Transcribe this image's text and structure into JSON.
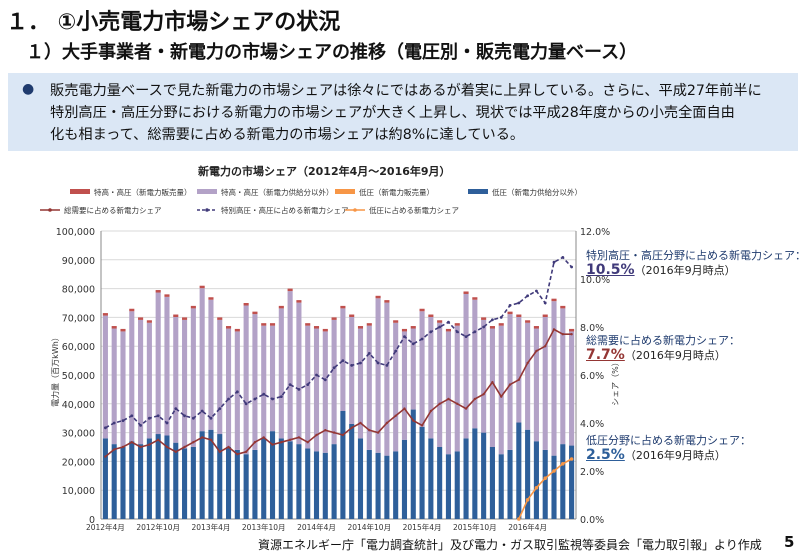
{
  "heading": "１． ①小売電力市場シェアの状況",
  "subheading": "１）大手事業者・新電力の市場シェアの推移（電圧別・販売電力量ベース）",
  "summary": {
    "bullet": "●",
    "lines": [
      "販売電力量ベースで見た新電力の市場シェアは徐々にではあるが着実に上昇している。さらに、平成27年前半に",
      "特別高圧・高圧分野における新電力の市場シェアが大きく上昇し、現状では平成28年度からの小売全面自由",
      "化も相まって、総需要に占める新電力の市場シェアは約8%に達している。"
    ]
  },
  "chart_data": {
    "type": "bar",
    "title": "新電力の市場シェア（2012年4月～2016年9月）",
    "ylabel_left": "電力量（百万kWh）",
    "ylabel_right": "シェア（%）",
    "ylim_left": [
      0,
      100000
    ],
    "ylim_right": [
      0,
      12
    ],
    "yticks_left": [
      "0",
      "10,000",
      "20,000",
      "30,000",
      "40,000",
      "50,000",
      "60,000",
      "70,000",
      "80,000",
      "90,000",
      "100,000"
    ],
    "yticks_right": [
      "0.0%",
      "2.0%",
      "4.0%",
      "6.0%",
      "8.0%",
      "10.0%",
      "12.0%"
    ],
    "xtick_labels": [
      "2012年4月",
      "2012年10月",
      "2013年4月",
      "2013年10月",
      "2014年4月",
      "2014年10月",
      "2015年4月",
      "2015年10月",
      "2016年4月"
    ],
    "grid": true,
    "legend_position": "top",
    "legend": [
      {
        "name": "特高・高圧（新電力販売量）",
        "kind": "bar",
        "color": "#c0504d"
      },
      {
        "name": "特高・高圧（新電力供給分以外）",
        "kind": "bar",
        "color": "#b3a2c7"
      },
      {
        "name": "低圧（新電力販売量）",
        "kind": "bar",
        "color": "#f79646"
      },
      {
        "name": "低圧（新電力供給分以外）",
        "kind": "bar",
        "color": "#2e5f9a"
      },
      {
        "name": "総需要に占める新電力シェア",
        "kind": "line",
        "color": "#943634"
      },
      {
        "name": "特別高圧・高圧に占める新電力シェア",
        "kind": "dashline",
        "color": "#403a7a"
      },
      {
        "name": "低圧に占める新電力シェア",
        "kind": "line",
        "color": "#f79646"
      }
    ],
    "months": 54,
    "bar_total": [
      71500,
      67000,
      66000,
      73000,
      70000,
      69000,
      79500,
      78000,
      71000,
      70000,
      74000,
      81000,
      77000,
      70000,
      67000,
      66000,
      75000,
      72000,
      68000,
      68000,
      74000,
      80000,
      76000,
      68000,
      67000,
      66000,
      70000,
      74000,
      71000,
      67000,
      68000,
      77500,
      76000,
      69000,
      66000,
      67000,
      73000,
      71000,
      69000,
      66000,
      68000,
      79000,
      77000,
      70000,
      67000,
      68000,
      72000,
      71000,
      69000,
      67000,
      71000,
      76500,
      74000,
      66000
    ],
    "low_voltage": [
      28000,
      26000,
      25000,
      27000,
      26000,
      28000,
      29500,
      29000,
      26500,
      24500,
      25000,
      30500,
      31000,
      29500,
      25000,
      24000,
      22500,
      24000,
      28000,
      30500,
      28000,
      27000,
      26000,
      24500,
      23500,
      23000,
      26000,
      37500,
      33000,
      28000,
      24000,
      23000,
      22000,
      23500,
      27500,
      38000,
      32000,
      28000,
      25000,
      22500,
      23500,
      28000,
      31500,
      30000,
      25000,
      22500,
      24000,
      33500,
      31000,
      27000,
      24000,
      22000,
      26000,
      25500
    ],
    "share_total": [
      2.6,
      2.9,
      3.0,
      3.2,
      3.0,
      3.1,
      3.3,
      3.0,
      2.8,
      3.0,
      3.2,
      3.4,
      3.3,
      2.8,
      3.0,
      2.7,
      2.8,
      3.2,
      3.4,
      3.1,
      3.2,
      3.3,
      3.4,
      3.2,
      3.5,
      3.7,
      3.6,
      3.5,
      3.8,
      4.0,
      3.7,
      3.6,
      4.0,
      4.3,
      4.6,
      4.1,
      3.9,
      4.5,
      4.8,
      5.0,
      4.8,
      4.6,
      5.0,
      5.2,
      5.7,
      5.1,
      5.6,
      5.8,
      6.5,
      7.0,
      7.2,
      7.9,
      7.7,
      7.7
    ],
    "share_high": [
      3.8,
      4.0,
      4.1,
      4.3,
      3.9,
      4.2,
      4.3,
      4.0,
      4.6,
      4.3,
      4.2,
      4.5,
      4.2,
      4.6,
      5.0,
      5.3,
      4.8,
      5.0,
      5.2,
      5.0,
      5.1,
      5.6,
      5.4,
      5.6,
      6.0,
      5.8,
      6.3,
      6.6,
      6.4,
      6.5,
      6.9,
      6.5,
      6.4,
      7.0,
      7.6,
      7.3,
      7.5,
      7.8,
      8.0,
      8.2,
      7.8,
      7.6,
      7.8,
      8.0,
      8.3,
      8.4,
      8.9,
      9.0,
      9.3,
      9.5,
      9.0,
      10.7,
      10.9,
      10.5
    ],
    "share_low": [
      0.0,
      0.8,
      1.3,
      1.7,
      2.0,
      2.3,
      2.5
    ],
    "share_low_start_index": 47,
    "annotations": [
      {
        "label": "特別高圧・高圧分野に占める新電力シェア：",
        "value": "10.5%",
        "asof": "（2016年9月時点）",
        "color": "#403a7a"
      },
      {
        "label": "総需要に占める新電力シェア：",
        "value": "7.7%",
        "asof": "（2016年9月時点）",
        "color": "#943634"
      },
      {
        "label": "低圧分野に占める新電力シェア：",
        "value": "2.5%",
        "asof": "（2016年9月時点）",
        "color": "#2e5f9a"
      }
    ]
  },
  "source": "資源エネルギー庁「電力調査統計」及び電力・ガス取引監視等委員会「電力取引報」より作成",
  "page_number": "5"
}
